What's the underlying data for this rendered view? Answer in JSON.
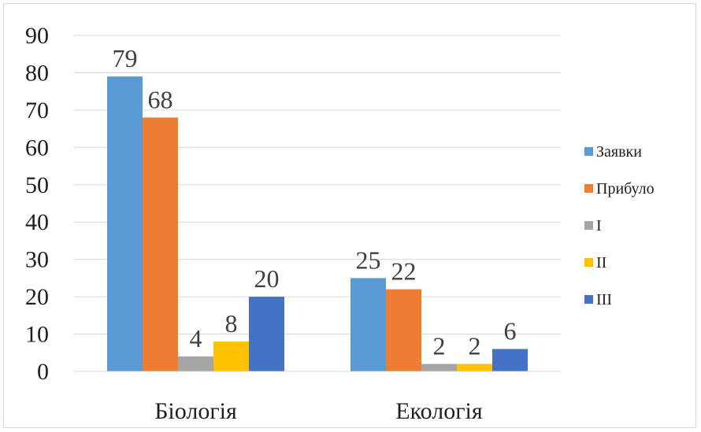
{
  "chart_data": {
    "type": "bar",
    "title": "",
    "xlabel": "",
    "ylabel": "",
    "categories": [
      "Біологія",
      "Екологія"
    ],
    "ylim": [
      0,
      90
    ],
    "yticks": [
      0,
      10,
      20,
      30,
      40,
      50,
      60,
      70,
      80,
      90
    ],
    "grid": true,
    "legend_position": "right",
    "series": [
      {
        "name": "Заявки",
        "values": [
          79,
          25
        ],
        "color": "#5B9BD5"
      },
      {
        "name": "Прибуло",
        "values": [
          68,
          22
        ],
        "color": "#ED7D31"
      },
      {
        "name": "I",
        "values": [
          4,
          2
        ],
        "color": "#A5A5A5"
      },
      {
        "name": "II",
        "values": [
          8,
          2
        ],
        "color": "#FFC000"
      },
      {
        "name": "III",
        "values": [
          20,
          6
        ],
        "color": "#4472C4"
      }
    ]
  }
}
